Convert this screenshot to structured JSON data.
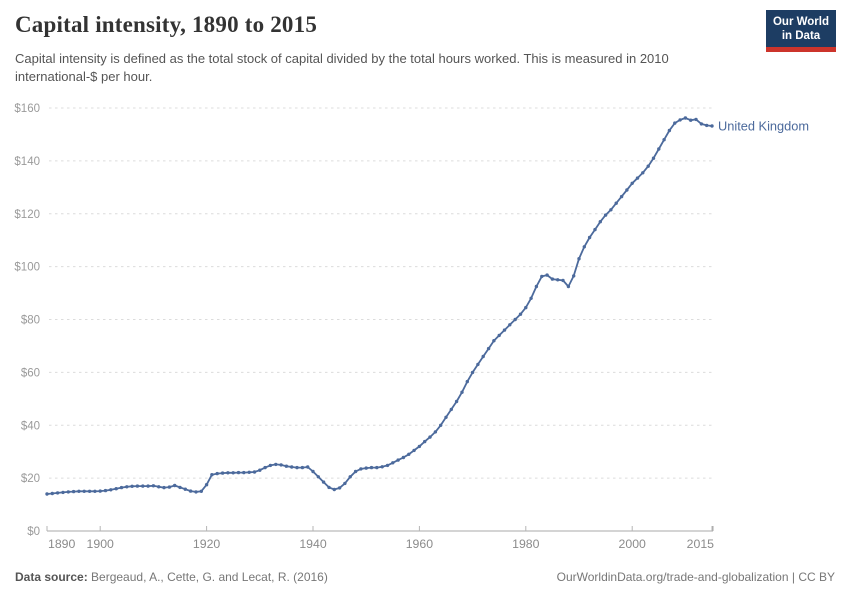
{
  "header": {
    "title": "Capital intensity, 1890 to 2015",
    "subtitle": "Capital intensity is defined as the total stock of capital divided by the total hours worked. This is measured in 2010 international-$ per hour.",
    "logo": {
      "line1": "Our World",
      "line2": "in Data",
      "bg_color": "#1d3d63",
      "accent_color": "#cc342b"
    }
  },
  "chart_data": {
    "type": "line",
    "title": "Capital intensity, 1890 to 2015",
    "xlabel": "",
    "ylabel": "2010 international-$ per hour",
    "xlim": [
      1890,
      2015
    ],
    "ylim": [
      0,
      160
    ],
    "grid": "horizontal-dashed",
    "legend_position": "end-of-line-label",
    "x_ticks": [
      1890,
      1900,
      1920,
      1940,
      1960,
      1980,
      2000,
      2015
    ],
    "x_tick_labels": [
      "1890",
      "1900",
      "1920",
      "1940",
      "1960",
      "1980",
      "2000",
      "2015"
    ],
    "y_ticks": [
      0,
      20,
      40,
      60,
      80,
      100,
      120,
      140,
      160
    ],
    "y_tick_labels": [
      "$0",
      "$20",
      "$40",
      "$60",
      "$80",
      "$100",
      "$120",
      "$140",
      "$160"
    ],
    "series": [
      {
        "name": "United Kingdom",
        "color": "#4C6A9C",
        "x_start": 1890,
        "x_end": 2015,
        "x_step": 1,
        "values": [
          14.0,
          14.2,
          14.4,
          14.6,
          14.8,
          14.9,
          15.0,
          15.0,
          15.0,
          15.0,
          15.1,
          15.3,
          15.6,
          16.0,
          16.4,
          16.7,
          16.9,
          17.0,
          17.0,
          17.0,
          17.1,
          16.7,
          16.4,
          16.6,
          17.2,
          16.5,
          15.8,
          15.1,
          14.8,
          15.0,
          17.5,
          21.3,
          21.7,
          21.9,
          22.0,
          22.0,
          22.1,
          22.1,
          22.2,
          22.3,
          23.0,
          24.0,
          24.8,
          25.2,
          25.0,
          24.5,
          24.2,
          24.0,
          24.0,
          24.2,
          22.5,
          20.5,
          18.5,
          16.5,
          15.7,
          16.3,
          18.0,
          20.5,
          22.5,
          23.5,
          23.8,
          24.0,
          24.0,
          24.3,
          24.8,
          25.8,
          26.8,
          27.8,
          29.0,
          30.5,
          32.0,
          33.8,
          35.5,
          37.5,
          40.0,
          43.0,
          46.0,
          49.0,
          52.5,
          56.5,
          60.0,
          63.0,
          66.0,
          69.0,
          72.0,
          74.0,
          76.0,
          78.0,
          80.0,
          82.0,
          84.5,
          88.0,
          92.5,
          96.3,
          96.8,
          95.3,
          95.0,
          94.8,
          92.5,
          96.5,
          103.0,
          107.5,
          111.0,
          114.0,
          117.0,
          119.5,
          121.5,
          124.0,
          126.5,
          129.0,
          131.5,
          133.5,
          135.5,
          138.0,
          141.0,
          144.5,
          148.0,
          151.5,
          154.3,
          155.5,
          156.2,
          155.4,
          155.7,
          154.0,
          153.4,
          153.2
        ]
      }
    ]
  },
  "footer": {
    "datasource_label": "Data source:",
    "datasource_text": " Bergeaud, A., Cette, G. and Lecat, R. (2016)",
    "link_text": "OurWorldinData.org/trade-and-globalization | CC BY"
  }
}
